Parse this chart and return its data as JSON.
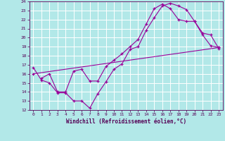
{
  "xlabel": "Windchill (Refroidissement éolien,°C)",
  "bg_color": "#b2e8e8",
  "grid_color": "#ffffff",
  "line_color": "#990099",
  "xlim": [
    -0.5,
    23.5
  ],
  "ylim": [
    12,
    24
  ],
  "xticks": [
    0,
    1,
    2,
    3,
    4,
    5,
    6,
    7,
    8,
    9,
    10,
    11,
    12,
    13,
    14,
    15,
    16,
    17,
    18,
    19,
    20,
    21,
    22,
    23
  ],
  "yticks": [
    12,
    13,
    14,
    15,
    16,
    17,
    18,
    19,
    20,
    21,
    22,
    23,
    24
  ],
  "line1_x": [
    0,
    1,
    2,
    3,
    4,
    5,
    6,
    7,
    8,
    9,
    10,
    11,
    12,
    13,
    14,
    15,
    16,
    17,
    18,
    19,
    20,
    21,
    22,
    23
  ],
  "line1_y": [
    16.7,
    15.3,
    15.0,
    13.9,
    13.9,
    13.0,
    13.0,
    12.2,
    13.8,
    15.1,
    16.5,
    17.1,
    18.7,
    19.0,
    20.8,
    22.2,
    23.5,
    23.8,
    23.5,
    23.1,
    21.8,
    20.3,
    19.1,
    18.9
  ],
  "line2_x": [
    1,
    2,
    3,
    4,
    5,
    6,
    7,
    8,
    9,
    10,
    11,
    12,
    13,
    14,
    15,
    16,
    17,
    18,
    19,
    20,
    21,
    22,
    23
  ],
  "line2_y": [
    15.5,
    16.0,
    14.0,
    14.0,
    16.3,
    16.5,
    15.2,
    15.2,
    16.8,
    17.5,
    18.2,
    19.0,
    19.8,
    21.5,
    23.2,
    23.7,
    23.2,
    22.0,
    21.8,
    21.8,
    20.5,
    20.3,
    18.8
  ],
  "line3_x": [
    0,
    23
  ],
  "line3_y": [
    16.0,
    18.9
  ]
}
